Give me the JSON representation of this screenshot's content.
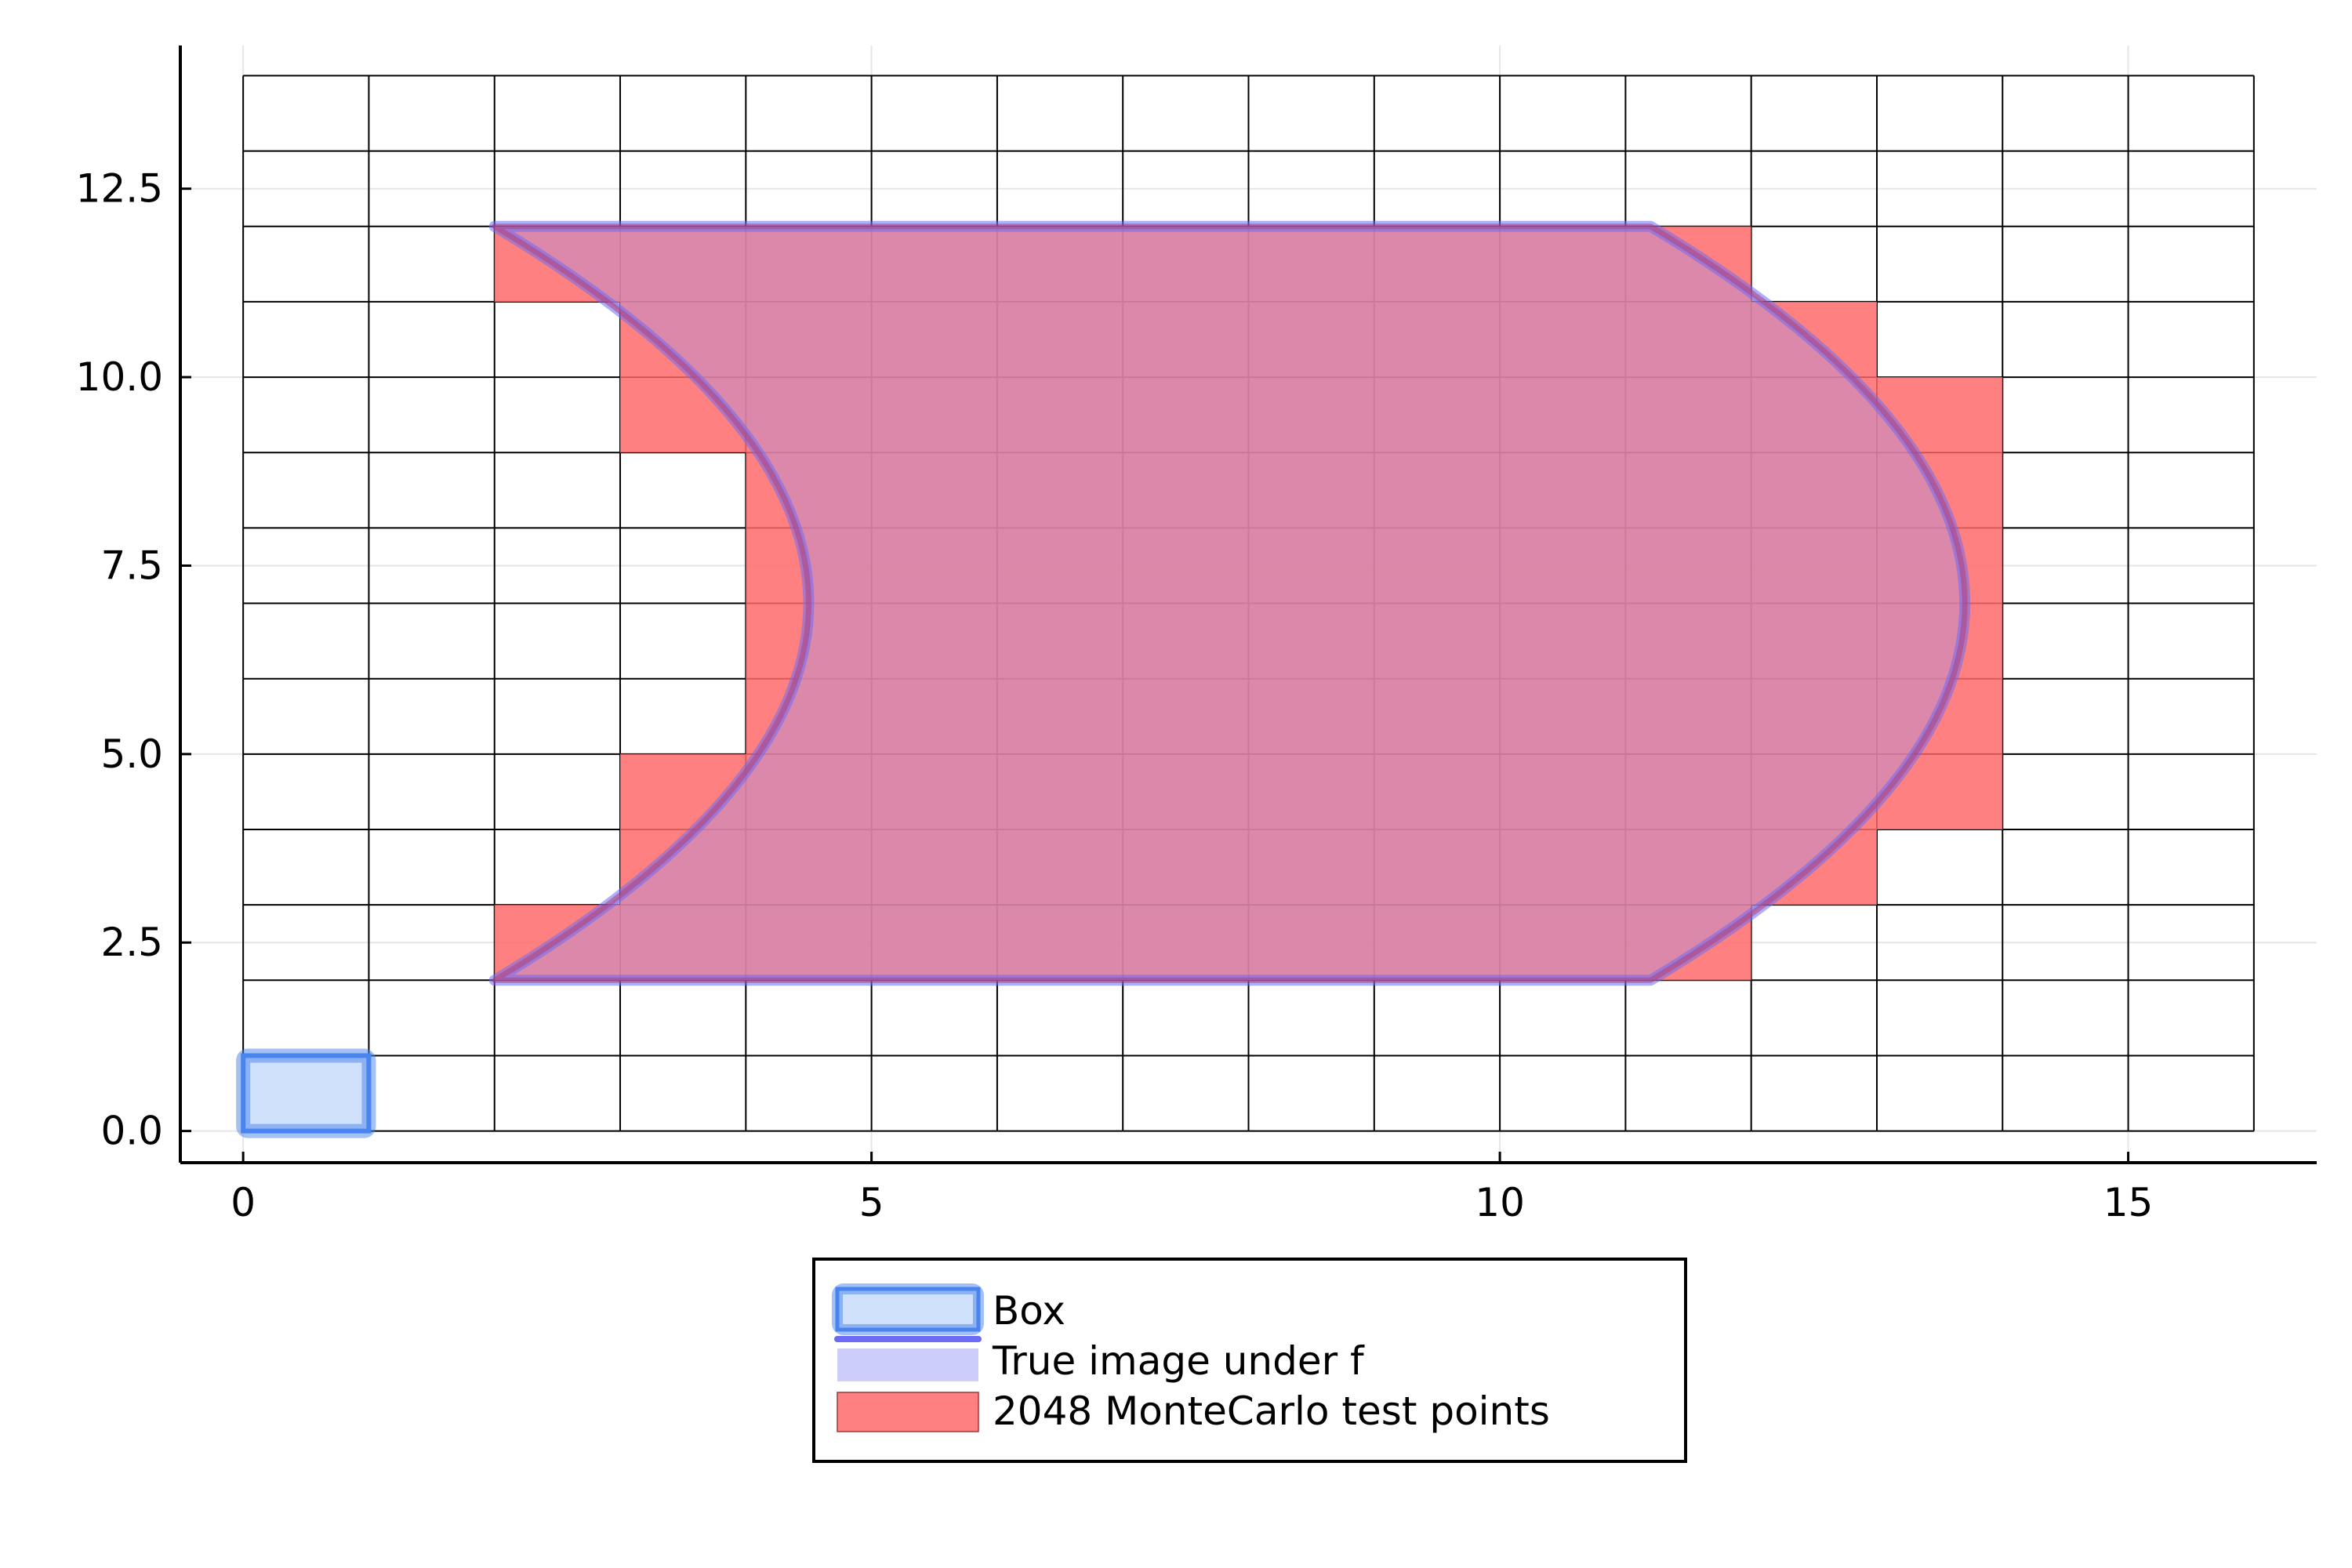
{
  "chart_data": {
    "type": "area",
    "title": "",
    "xlabel": "",
    "ylabel": "",
    "xlim": [
      -0.5,
      16.5
    ],
    "ylim": [
      -0.42,
      14.4
    ],
    "xticks": [
      0,
      5,
      10,
      15
    ],
    "xtick_labels": [
      "0",
      "5",
      "10",
      "15"
    ],
    "yticks": [
      0,
      2.5,
      5,
      7.5,
      10,
      12.5
    ],
    "ytick_labels": [
      "0.0",
      "2.5",
      "5.0",
      "7.5",
      "10.0",
      "12.5"
    ],
    "grid": true,
    "cell_grid": {
      "x_range": [
        0,
        16
      ],
      "y_range": [
        0,
        14
      ],
      "step": 1
    },
    "legend_position": "bottom, outside plot",
    "colors": {
      "box_fill": "#cfe0fb",
      "box_edge": "#4a84ee",
      "true_image_fill": "#c8c8fa",
      "true_image_edge": "#6b6bf5",
      "montecarlo_fill": "#ff6a6a",
      "overlap_fill": "#e4657e",
      "cell_grid_line": "#000000",
      "major_grid_line": "#e6e6e6"
    },
    "series": [
      {
        "name": "Box",
        "kind": "rectangle",
        "x": [
          0,
          1
        ],
        "y": [
          0,
          1
        ]
      },
      {
        "name": "True image under f",
        "kind": "polygon",
        "top_segment": {
          "x": [
            2,
            11.2
          ],
          "y": 12
        },
        "bottom_segment": {
          "x": [
            2,
            11.2
          ],
          "y": 2
        },
        "left_curve": {
          "x_at_ends": 2,
          "x_at_middle": 4.5,
          "y_middle": 7
        },
        "right_curve": {
          "x_at_ends": 11.2,
          "x_at_middle": 13.7,
          "y_middle": 7
        }
      },
      {
        "name": "2048 MonteCarlo test points",
        "kind": "cells",
        "rows": [
          {
            "y": [
              11,
              12
            ],
            "x": [
              2,
              12
            ]
          },
          {
            "y": [
              10,
              11
            ],
            "x": [
              3,
              13
            ]
          },
          {
            "y": [
              9,
              10
            ],
            "x": [
              3,
              14
            ]
          },
          {
            "y": [
              5,
              9
            ],
            "x": [
              4,
              14
            ]
          },
          {
            "y": [
              4,
              5
            ],
            "x": [
              3,
              14
            ]
          },
          {
            "y": [
              3,
              4
            ],
            "x": [
              3,
              13
            ]
          },
          {
            "y": [
              2,
              3
            ],
            "x": [
              2,
              12
            ]
          }
        ]
      }
    ]
  }
}
